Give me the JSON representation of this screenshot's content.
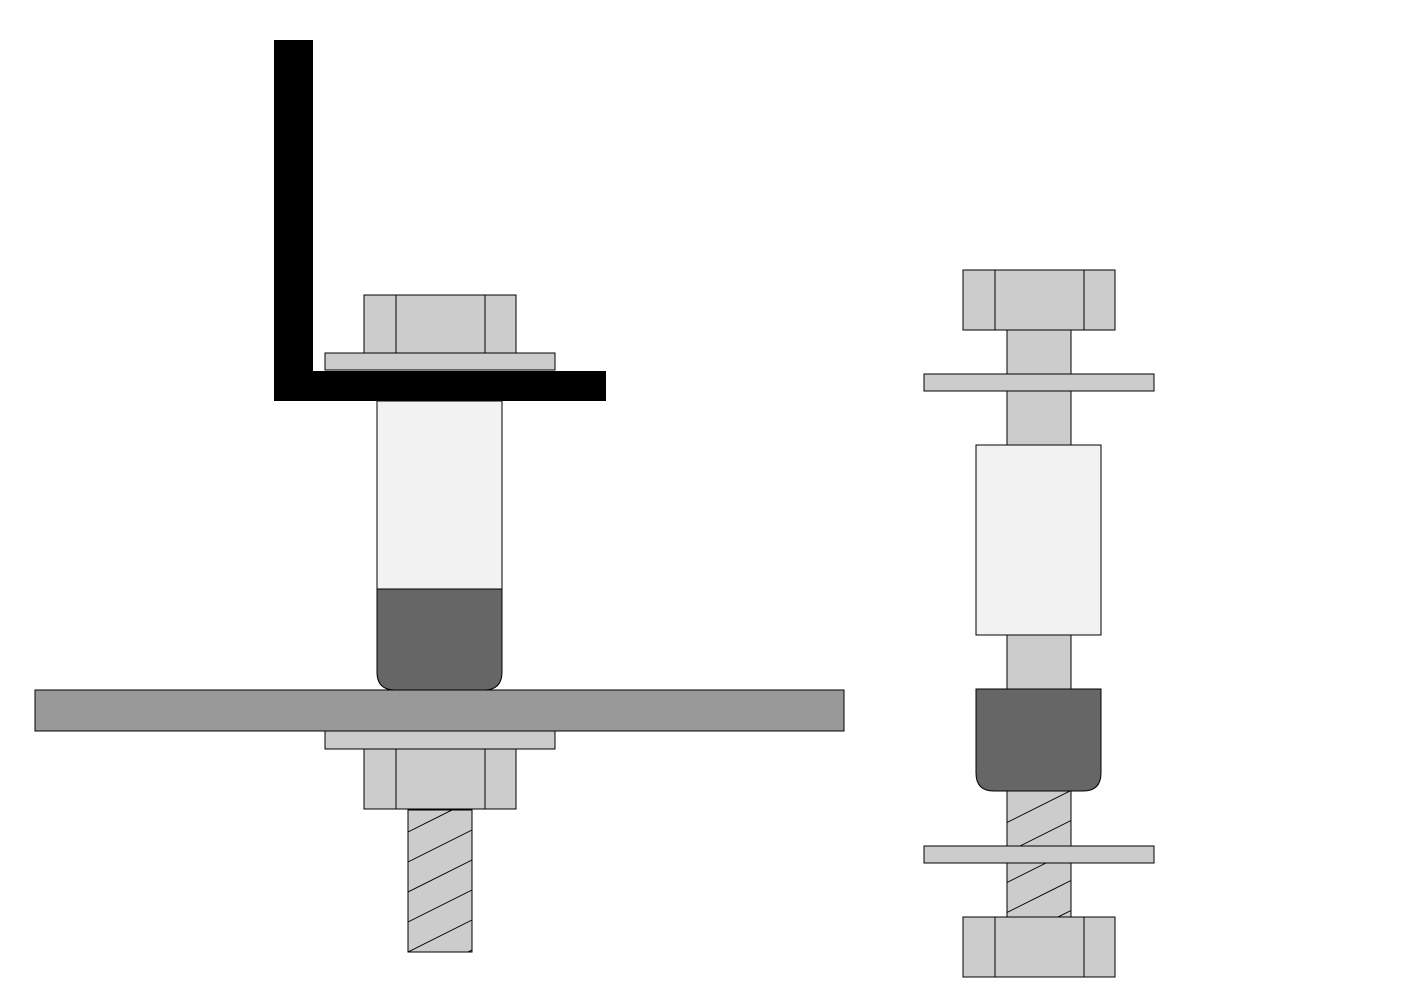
{
  "diagram": {
    "colors": {
      "background": "#ffffff",
      "bracket": "#000000",
      "hardware": "#cccccc",
      "plate": "#999999",
      "spacer": "#f2f2f2",
      "rubber_foot": "#666666",
      "outline": "#000000"
    },
    "assembled_view": {
      "parts": [
        "angle-bracket",
        "hex-bolt-head",
        "washer",
        "spacer",
        "rubber-foot",
        "base-plate",
        "washer",
        "hex-nut",
        "threaded-rod"
      ]
    },
    "exploded_view": {
      "parts": [
        "hex-bolt-head",
        "bolt-shank",
        "washer",
        "spacer",
        "rubber-foot",
        "threaded-rod",
        "washer",
        "hex-nut"
      ]
    }
  }
}
